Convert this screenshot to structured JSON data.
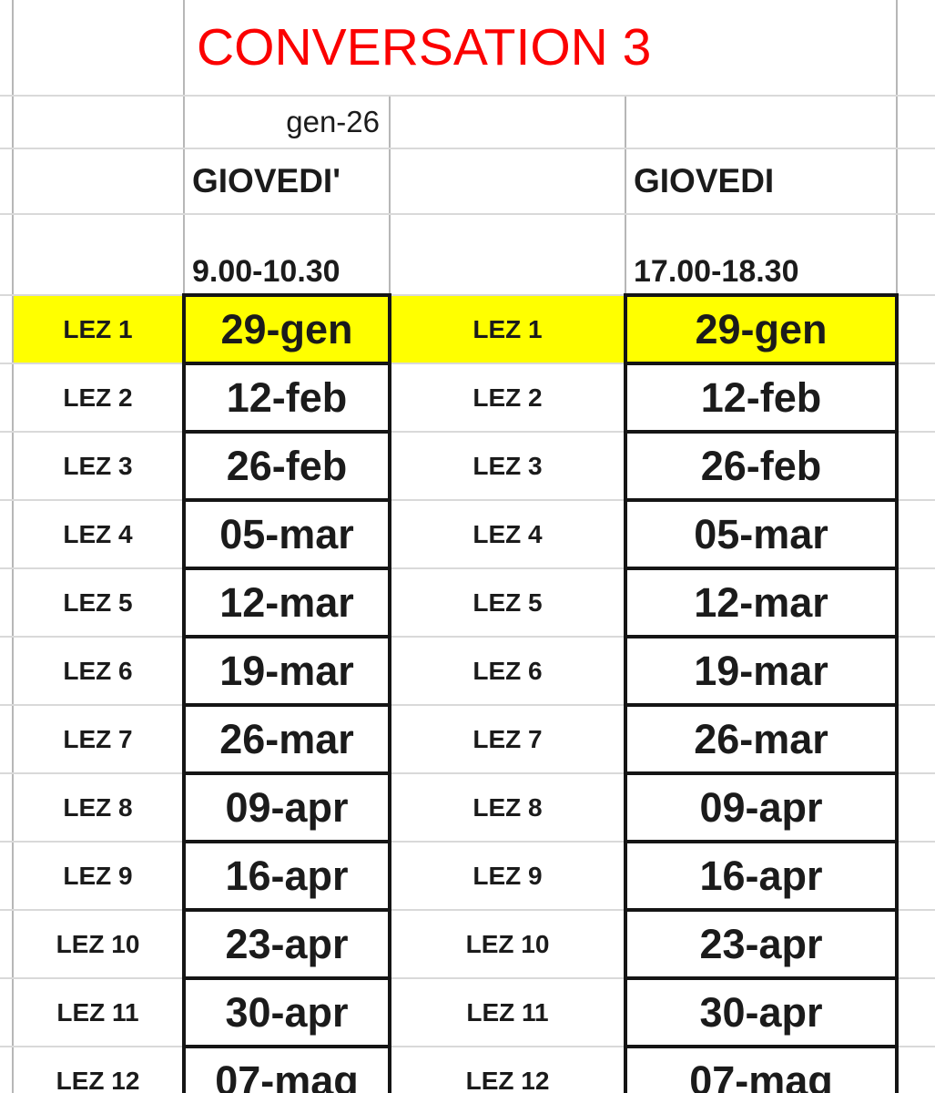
{
  "sheet": {
    "title": "CONVERSATION 3",
    "month_label": "gen-26",
    "left_session": {
      "day": "GIOVEDI'",
      "time": "9.00-10.30"
    },
    "right_session": {
      "day": "GIOVEDI",
      "time": "17.00-18.30"
    },
    "lessons": [
      {
        "label": "LEZ 1",
        "date": "29-gen",
        "highlighted": true
      },
      {
        "label": "LEZ 2",
        "date": "12-feb",
        "highlighted": false
      },
      {
        "label": "LEZ 3",
        "date": "26-feb",
        "highlighted": false
      },
      {
        "label": "LEZ 4",
        "date": "05-mar",
        "highlighted": false
      },
      {
        "label": "LEZ 5",
        "date": "12-mar",
        "highlighted": false
      },
      {
        "label": "LEZ 6",
        "date": "19-mar",
        "highlighted": false
      },
      {
        "label": "LEZ 7",
        "date": "26-mar",
        "highlighted": false
      },
      {
        "label": "LEZ 8",
        "date": "09-apr",
        "highlighted": false
      },
      {
        "label": "LEZ 9",
        "date": "16-apr",
        "highlighted": false
      },
      {
        "label": "LEZ 10",
        "date": "23-apr",
        "highlighted": false
      },
      {
        "label": "LEZ 11",
        "date": "30-apr",
        "highlighted": false
      },
      {
        "label": "LEZ 12",
        "date": "07-mag",
        "highlighted": false
      }
    ],
    "colors": {
      "title_red": "#fb0000",
      "highlight_yellow": "#ffff00",
      "cell_border_black": "#151515",
      "gridline_gray": "#c6c6c6",
      "text_ink": "#1b1b1b"
    }
  }
}
